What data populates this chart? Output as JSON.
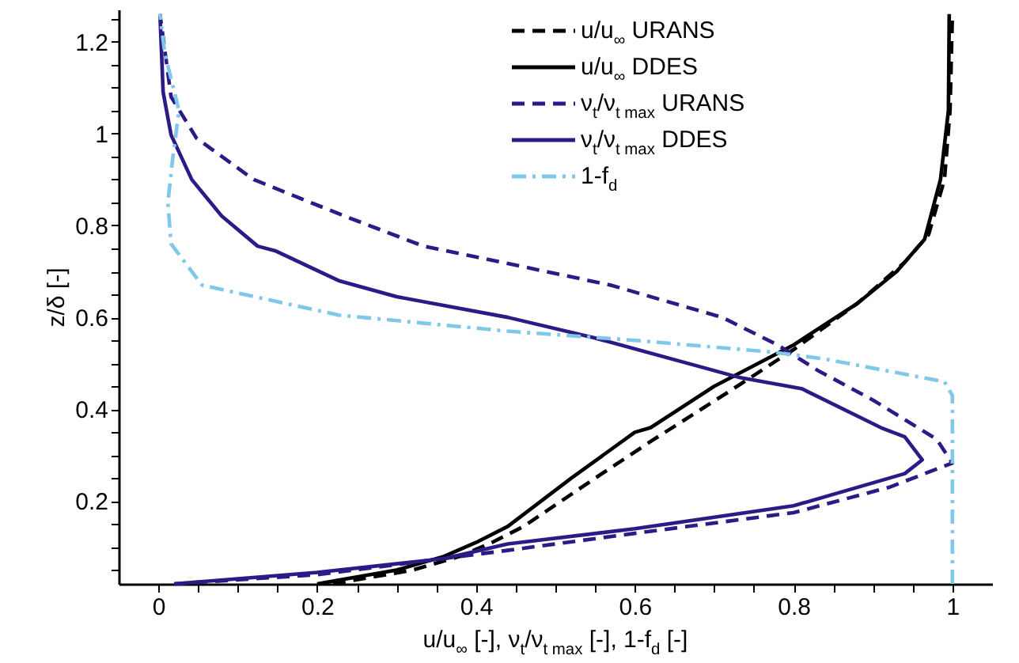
{
  "chart_data": {
    "type": "line",
    "xlabel": "u/u$_{∞}$ [-], ν$_{t}$/ν$_{t max}$ [-], 1-f$_{d}$ [-]",
    "ylabel": "z/δ [-]",
    "xlim": [
      -0.05,
      1.05
    ],
    "ylim": [
      0.02,
      1.27
    ],
    "xticks": [
      0,
      {
        "value": 0.05,
        "label": null
      },
      {
        "value": 0.1,
        "label": null
      },
      {
        "value": 0.15,
        "label": null
      },
      0.2,
      {
        "value": 0.25,
        "label": null
      },
      {
        "value": 0.3,
        "label": null
      },
      {
        "value": 0.35,
        "label": null
      },
      0.4,
      {
        "value": 0.45,
        "label": null
      },
      {
        "value": 0.5,
        "label": null
      },
      {
        "value": 0.55,
        "label": null
      },
      0.6,
      {
        "value": 0.65,
        "label": null
      },
      {
        "value": 0.7,
        "label": null
      },
      {
        "value": 0.75,
        "label": null
      },
      0.8,
      {
        "value": 0.85,
        "label": null
      },
      {
        "value": 0.9,
        "label": null
      },
      {
        "value": 0.95,
        "label": null
      },
      1
    ],
    "yticks": [
      {
        "value": 0.05,
        "label": null
      },
      {
        "value": 0.1,
        "label": null
      },
      {
        "value": 0.15,
        "label": null
      },
      0.2,
      {
        "value": 0.25,
        "label": null
      },
      {
        "value": 0.3,
        "label": null
      },
      {
        "value": 0.35,
        "label": null
      },
      0.4,
      {
        "value": 0.45,
        "label": null
      },
      {
        "value": 0.5,
        "label": null
      },
      {
        "value": 0.55,
        "label": null
      },
      0.6,
      {
        "value": 0.65,
        "label": null
      },
      {
        "value": 0.7,
        "label": null
      },
      {
        "value": 0.75,
        "label": null
      },
      0.8,
      {
        "value": 0.85,
        "label": null
      },
      {
        "value": 0.9,
        "label": null
      },
      {
        "value": 0.95,
        "label": null
      },
      1,
      {
        "value": 1.05,
        "label": null
      },
      {
        "value": 1.1,
        "label": null
      },
      {
        "value": 1.15,
        "label": null
      },
      1.2,
      {
        "value": 1.25,
        "label": null
      }
    ],
    "grid": false,
    "legend": "top right",
    "marker": "none",
    "series": [
      {
        "name": "u/u$_{∞}$ URANS",
        "color": "#000000",
        "line_style": "dashed",
        "x": [
          0.22,
          0.32,
          0.38,
          0.42,
          0.46,
          0.55,
          0.62,
          0.72,
          0.8,
          0.88,
          0.94,
          0.97,
          0.99,
          0.997,
          1.0
        ],
        "values": [
          0.02,
          0.05,
          0.08,
          0.11,
          0.145,
          0.25,
          0.33,
          0.44,
          0.53,
          0.63,
          0.72,
          0.78,
          0.9,
          1.05,
          1.26
        ]
      },
      {
        "name": "u/u$_{∞}$ DDES",
        "color": "#000000",
        "line_style": "solid",
        "x": [
          0.2,
          0.3,
          0.36,
          0.4,
          0.44,
          0.52,
          0.6,
          0.62,
          0.7,
          0.8,
          0.88,
          0.93,
          0.955,
          0.965,
          0.985,
          0.995,
          0.996
        ],
        "values": [
          0.02,
          0.05,
          0.08,
          0.11,
          0.145,
          0.25,
          0.35,
          0.36,
          0.45,
          0.54,
          0.63,
          0.7,
          0.75,
          0.77,
          0.9,
          1.05,
          1.26
        ]
      },
      {
        "name": "ν$_{t}$/ν$_{t max}$ URANS",
        "color": "#2e1a87",
        "line_style": "dashed",
        "x": [
          0.02,
          0.2,
          0.44,
          0.6,
          0.8,
          0.92,
          1.0,
          0.98,
          0.9,
          0.83,
          0.78,
          0.71,
          0.57,
          0.46,
          0.334,
          0.235,
          0.12,
          0.048,
          0.016,
          0.002
        ],
        "values": [
          0.02,
          0.04,
          0.093,
          0.13,
          0.175,
          0.23,
          0.283,
          0.335,
          0.42,
          0.485,
          0.54,
          0.6,
          0.67,
          0.71,
          0.755,
          0.82,
          0.9,
          0.99,
          1.08,
          1.26
        ]
      },
      {
        "name": "ν$_{t}$/ν$_{t max}$ DDES",
        "color": "#2e1a87",
        "line_style": "solid",
        "x": [
          0.02,
          0.2,
          0.36,
          0.44,
          0.6,
          0.8,
          0.94,
          0.962,
          0.94,
          0.91,
          0.81,
          0.73,
          0.55,
          0.44,
          0.3,
          0.227,
          0.147,
          0.125,
          0.08,
          0.042,
          0.016,
          0.006,
          0.002
        ],
        "values": [
          0.02,
          0.045,
          0.075,
          0.107,
          0.14,
          0.19,
          0.26,
          0.29,
          0.34,
          0.36,
          0.445,
          0.47,
          0.555,
          0.6,
          0.645,
          0.68,
          0.745,
          0.755,
          0.82,
          0.9,
          0.997,
          1.09,
          1.26
        ]
      },
      {
        "name": "1-f$_{d}$",
        "color": "#7fc8ea",
        "line_style": "dashdot",
        "x": [
          1.0,
          1.0,
          0.99,
          0.837,
          0.77,
          0.6,
          0.44,
          0.227,
          0.055,
          0.016,
          0.012,
          0.018,
          0.026,
          0.008,
          0.002
        ],
        "values": [
          0.02,
          0.43,
          0.46,
          0.51,
          0.525,
          0.55,
          0.57,
          0.605,
          0.67,
          0.76,
          0.85,
          0.945,
          1.05,
          1.175,
          1.26
        ]
      }
    ]
  }
}
